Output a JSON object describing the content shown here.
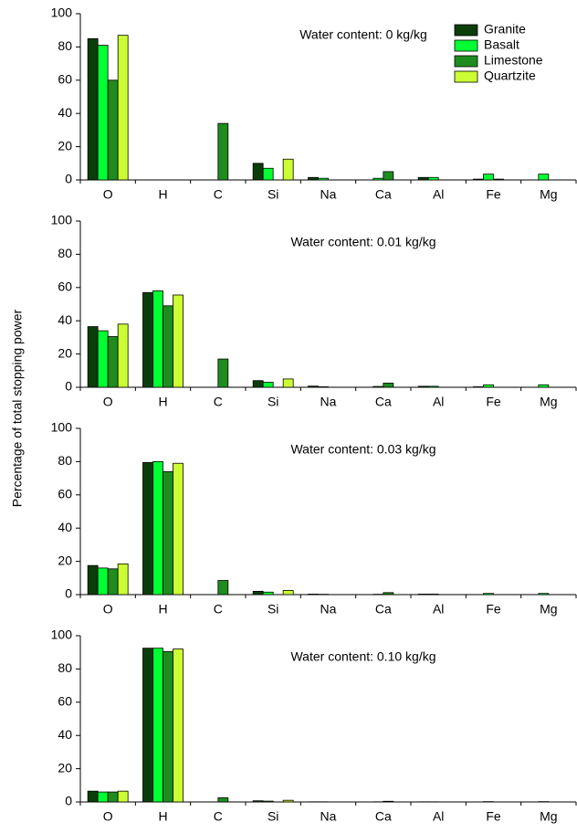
{
  "ylabel": "Percentage of total stopping power",
  "chart_data": [
    {
      "type": "bar",
      "title": "Water content: 0 kg/kg",
      "categories": [
        "O",
        "H",
        "C",
        "Si",
        "Na",
        "Ca",
        "Al",
        "Fe",
        "Mg"
      ],
      "series": [
        {
          "name": "Granite",
          "color": "#0b3d0b",
          "values": [
            85,
            0,
            0,
            10,
            1.5,
            0,
            1.5,
            0.5,
            0
          ]
        },
        {
          "name": "Basalt",
          "color": "#00ff33",
          "values": [
            81,
            0,
            0,
            7,
            1,
            1,
            1.5,
            3.5,
            3.5
          ]
        },
        {
          "name": "Limestone",
          "color": "#1e8c1e",
          "values": [
            60,
            0,
            34,
            0,
            0,
            5,
            0,
            0.5,
            0
          ]
        },
        {
          "name": "Quartzite",
          "color": "#ccff33",
          "values": [
            87,
            0,
            0,
            12.5,
            0,
            0,
            0,
            0,
            0
          ]
        }
      ],
      "ylim": [
        0,
        100
      ],
      "yticks": [
        0,
        20,
        40,
        60,
        80,
        100
      ],
      "legend": "top-right"
    },
    {
      "type": "bar",
      "title": "Water content: 0.01 kg/kg",
      "categories": [
        "O",
        "H",
        "C",
        "Si",
        "Na",
        "Ca",
        "Al",
        "Fe",
        "Mg"
      ],
      "series": [
        {
          "color": "#0b3d0b",
          "values": [
            36.5,
            57,
            0,
            4,
            0.7,
            0,
            0.6,
            0.3,
            0
          ]
        },
        {
          "color": "#00ff33",
          "values": [
            34,
            58,
            0,
            3,
            0.3,
            0.5,
            0.6,
            1.5,
            1.5
          ]
        },
        {
          "color": "#1e8c1e",
          "values": [
            30.5,
            49,
            17,
            0,
            0,
            2.5,
            0,
            0,
            0
          ]
        },
        {
          "color": "#ccff33",
          "values": [
            38,
            55.5,
            0,
            5,
            0,
            0,
            0,
            0,
            0
          ]
        }
      ],
      "ylim": [
        0,
        100
      ],
      "yticks": [
        0,
        20,
        40,
        60,
        80,
        100
      ]
    },
    {
      "type": "bar",
      "title": "Water content: 0.03 kg/kg",
      "categories": [
        "O",
        "H",
        "C",
        "Si",
        "Na",
        "Ca",
        "Al",
        "Fe",
        "Mg"
      ],
      "series": [
        {
          "color": "#0b3d0b",
          "values": [
            17.5,
            79.5,
            0,
            2,
            0.3,
            0,
            0.3,
            0,
            0
          ]
        },
        {
          "color": "#00ff33",
          "values": [
            16,
            80,
            0,
            1.5,
            0.2,
            0.2,
            0.3,
            0.7,
            0.7
          ]
        },
        {
          "color": "#1e8c1e",
          "values": [
            15.5,
            74,
            8.5,
            0,
            0,
            1.2,
            0,
            0,
            0
          ]
        },
        {
          "color": "#ccff33",
          "values": [
            18.5,
            79,
            0,
            2.5,
            0,
            0,
            0,
            0,
            0
          ]
        }
      ],
      "ylim": [
        0,
        100
      ],
      "yticks": [
        0,
        20,
        40,
        60,
        80,
        100
      ]
    },
    {
      "type": "bar",
      "title": "Water content: 0.10 kg/kg",
      "categories": [
        "O",
        "H",
        "C",
        "Si",
        "Na",
        "Ca",
        "Al",
        "Fe",
        "Mg"
      ],
      "series": [
        {
          "color": "#0b3d0b",
          "values": [
            6.5,
            92.5,
            0,
            0.7,
            0.1,
            0,
            0.1,
            0,
            0
          ]
        },
        {
          "color": "#00ff33",
          "values": [
            6,
            92.5,
            0,
            0.5,
            0.1,
            0.1,
            0.1,
            0.2,
            0.2
          ]
        },
        {
          "color": "#1e8c1e",
          "values": [
            6,
            90.5,
            2.5,
            0,
            0,
            0.4,
            0,
            0,
            0
          ]
        },
        {
          "color": "#ccff33",
          "values": [
            6.5,
            92,
            0,
            1,
            0,
            0,
            0,
            0,
            0
          ]
        }
      ],
      "ylim": [
        0,
        100
      ],
      "yticks": [
        0,
        20,
        40,
        60,
        80,
        100
      ]
    }
  ]
}
